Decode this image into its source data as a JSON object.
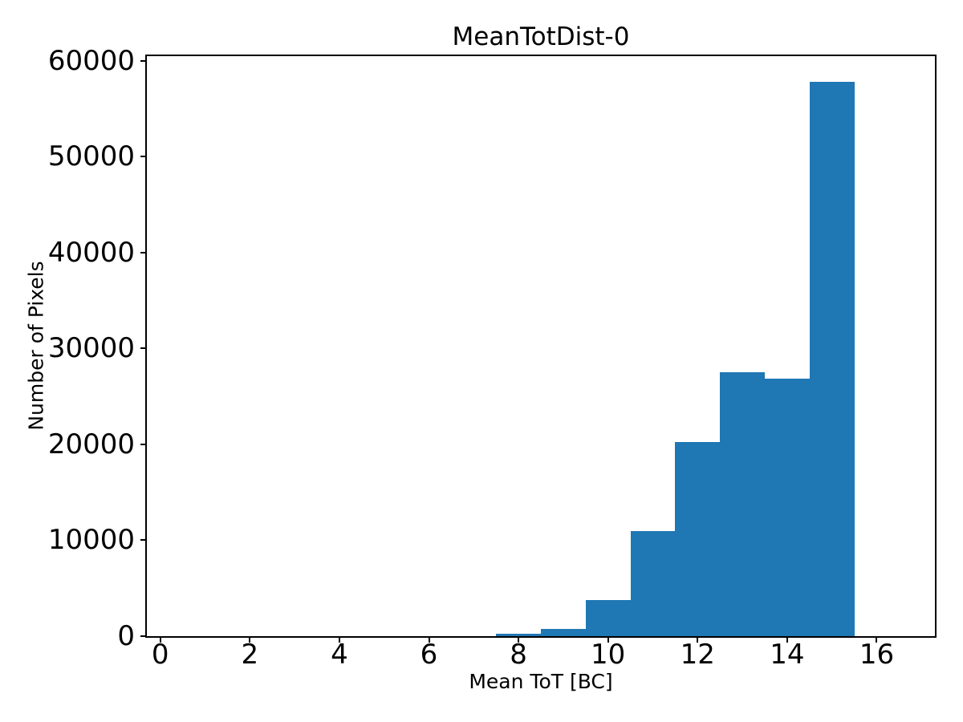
{
  "chart_data": {
    "type": "bar",
    "subtype": "histogram",
    "title": "MeanTotDist-0",
    "xlabel": "Mean ToT [BC]",
    "ylabel": "Number of Pixels",
    "bar_color": "#1f77b4",
    "axis_color": "#000000",
    "background_color": "#ffffff",
    "grid": false,
    "legend": null,
    "xlim": [
      -0.3,
      17.3
    ],
    "ylim": [
      0,
      60500
    ],
    "xticks": [
      0,
      2,
      4,
      6,
      8,
      10,
      12,
      14,
      16
    ],
    "yticks": [
      0,
      10000,
      20000,
      30000,
      40000,
      50000,
      60000
    ],
    "bins": {
      "edges": [
        7.5,
        8.5,
        9.5,
        10.5,
        11.5,
        12.5,
        13.5,
        14.5,
        15.5
      ],
      "counts": [
        250,
        750,
        3800,
        11000,
        20250,
        27500,
        26900,
        57800
      ]
    }
  }
}
